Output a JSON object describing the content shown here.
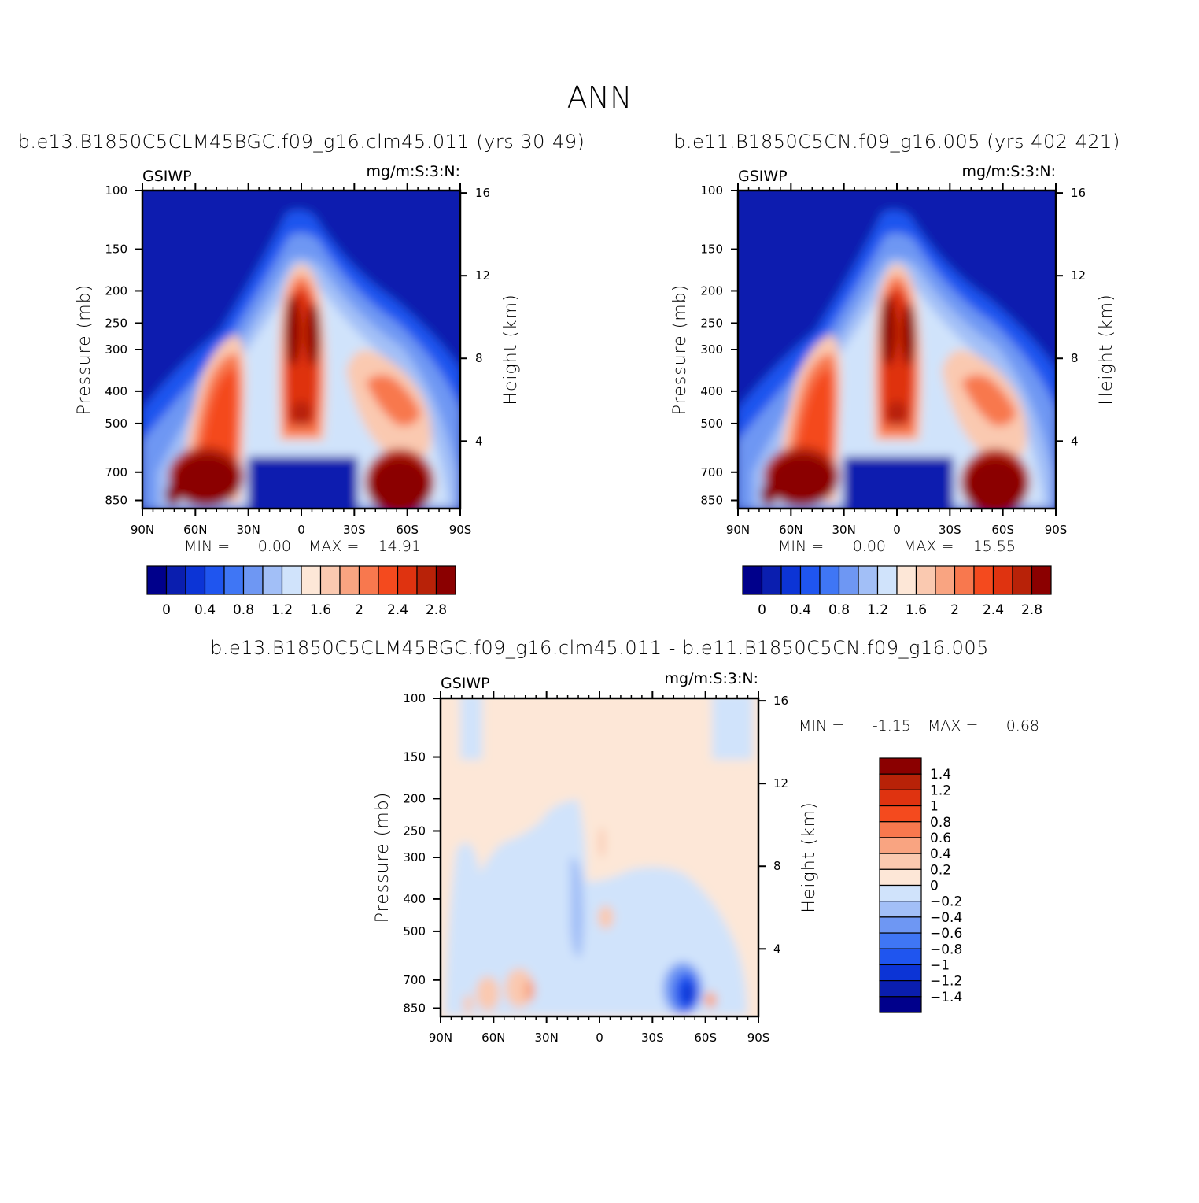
{
  "page": {
    "title": "ANN"
  },
  "color_scales": {
    "abs": [
      "#00008b",
      "#0a1eaf",
      "#0c34d6",
      "#1f55ef",
      "#3f76f5",
      "#6e97f3",
      "#a2bff7",
      "#d0e3fb",
      "#fde7d7",
      "#fac9b0",
      "#f9a481",
      "#f8784e",
      "#f44a1e",
      "#df3310",
      "#b82208",
      "#8b0000"
    ],
    "diff": [
      "#00008b",
      "#0a1eaf",
      "#0c34d6",
      "#1f55ef",
      "#3f76f5",
      "#6e97f3",
      "#a2bff7",
      "#d0e3fb",
      "#fde7d7",
      "#fac9b0",
      "#f9a481",
      "#f8784e",
      "#f44a1e",
      "#df3310",
      "#b82208",
      "#8b0000"
    ]
  },
  "chart_data": [
    {
      "id": "panel1",
      "type": "contour",
      "title": "b.e13.B1850C5CLM45BGC.f09_g16.clm45.011 (yrs 30-49)",
      "variable": "GSIWP",
      "units": "mg/m:S:3:N:",
      "xlabel": "",
      "ylabel": "Pressure (mb)",
      "y2label": "Height (km)",
      "x_ticks": [
        "90N",
        "60N",
        "30N",
        "0",
        "30S",
        "60S",
        "90S"
      ],
      "x_range": [
        90,
        -90
      ],
      "y_ticks": [
        "100",
        "150",
        "200",
        "250",
        "300",
        "400",
        "500",
        "700",
        "850"
      ],
      "y_range_mb": [
        100,
        900
      ],
      "y2_ticks": [
        "16",
        "12",
        "8",
        "4"
      ],
      "min_label": "MIN =",
      "min": "0.00",
      "max_label": "MAX =",
      "max": "14.91",
      "colorbar": {
        "orientation": "horizontal",
        "levels": [
          "0",
          "0.2",
          "0.4",
          "0.6",
          "0.8",
          "1",
          "1.2",
          "1.4",
          "1.6",
          "1.8",
          "2",
          "2.2",
          "2.4",
          "2.6",
          "2.8"
        ],
        "labels": [
          "0",
          "0.4",
          "0.8",
          "1.2",
          "1.6",
          "2",
          "2.4",
          "2.8"
        ]
      },
      "features": [
        {
          "name": "tropical maximum",
          "lat": [
            -8,
            8
          ],
          "p_mb": [
            200,
            600
          ],
          "peak": 14.91
        },
        {
          "name": "NH midlatitude storm track",
          "lat": [
            35,
            70
          ],
          "p_mb": [
            300,
            900
          ]
        },
        {
          "name": "SH midlatitude storm track",
          "lat": [
            -70,
            -35
          ],
          "p_mb": [
            330,
            900
          ]
        }
      ]
    },
    {
      "id": "panel2",
      "type": "contour",
      "title": "b.e11.B1850C5CN.f09_g16.005 (yrs 402-421)",
      "variable": "GSIWP",
      "units": "mg/m:S:3:N:",
      "xlabel": "",
      "ylabel": "Pressure (mb)",
      "y2label": "Height (km)",
      "x_ticks": [
        "90N",
        "60N",
        "30N",
        "0",
        "30S",
        "60S",
        "90S"
      ],
      "x_range": [
        90,
        -90
      ],
      "y_ticks": [
        "100",
        "150",
        "200",
        "250",
        "300",
        "400",
        "500",
        "700",
        "850"
      ],
      "y_range_mb": [
        100,
        900
      ],
      "y2_ticks": [
        "16",
        "12",
        "8",
        "4"
      ],
      "min_label": "MIN =",
      "min": "0.00",
      "max_label": "MAX =",
      "max": "15.55",
      "colorbar": {
        "orientation": "horizontal",
        "levels": [
          "0",
          "0.2",
          "0.4",
          "0.6",
          "0.8",
          "1",
          "1.2",
          "1.4",
          "1.6",
          "1.8",
          "2",
          "2.2",
          "2.4",
          "2.6",
          "2.8"
        ],
        "labels": [
          "0",
          "0.4",
          "0.8",
          "1.2",
          "1.6",
          "2",
          "2.4",
          "2.8"
        ]
      },
      "features": [
        {
          "name": "tropical maximum",
          "lat": [
            -8,
            8
          ],
          "p_mb": [
            200,
            600
          ],
          "peak": 15.55
        },
        {
          "name": "NH midlatitude storm track",
          "lat": [
            35,
            70
          ],
          "p_mb": [
            300,
            900
          ]
        },
        {
          "name": "SH midlatitude storm track",
          "lat": [
            -70,
            -35
          ],
          "p_mb": [
            330,
            900
          ]
        }
      ]
    },
    {
      "id": "panel3",
      "type": "contour",
      "title": "b.e13.B1850C5CLM45BGC.f09_g16.clm45.011 - b.e11.B1850C5CN.f09_g16.005",
      "variable": "GSIWP",
      "units": "mg/m:S:3:N:",
      "xlabel": "",
      "ylabel": "Pressure (mb)",
      "y2label": "Height (km)",
      "x_ticks": [
        "90N",
        "60N",
        "30N",
        "0",
        "30S",
        "60S",
        "90S"
      ],
      "x_range": [
        90,
        -90
      ],
      "y_ticks": [
        "100",
        "150",
        "200",
        "250",
        "300",
        "400",
        "500",
        "700",
        "850"
      ],
      "y_range_mb": [
        100,
        900
      ],
      "y2_ticks": [
        "16",
        "12",
        "8",
        "4"
      ],
      "min_label": "MIN =",
      "min": "-1.15",
      "max_label": "MAX =",
      "max": "0.68",
      "colorbar": {
        "orientation": "vertical",
        "labels": [
          "1.4",
          "1.2",
          "1",
          "0.8",
          "0.6",
          "0.4",
          "0.2",
          "0",
          "-0.2",
          "-0.4",
          "-0.6",
          "-0.8",
          "-1",
          "-1.2",
          "-1.4"
        ]
      },
      "features": [
        {
          "name": "SH 55S low-level minimum",
          "lat": [
            -60,
            -45
          ],
          "p_mb": [
            650,
            900
          ],
          "value": -1.15
        },
        {
          "name": "NH low-level positive",
          "lat": [
            30,
            70
          ],
          "p_mb": [
            700,
            900
          ],
          "value": 0.68
        }
      ]
    }
  ]
}
